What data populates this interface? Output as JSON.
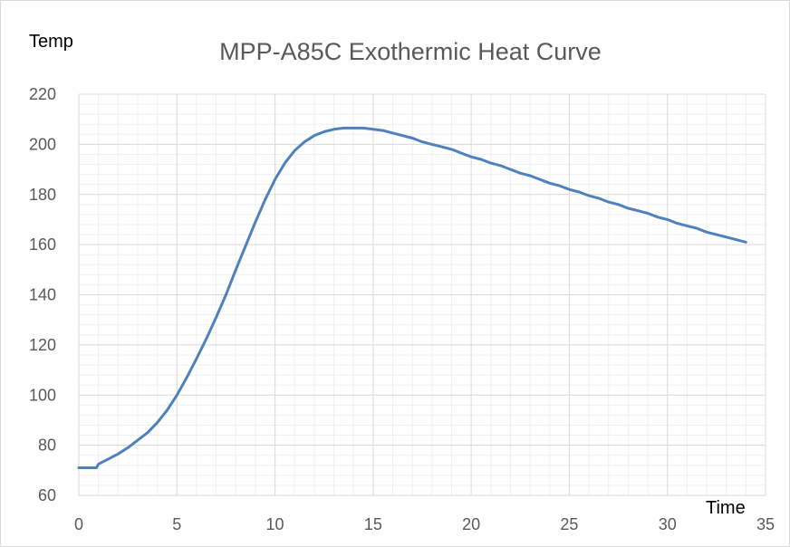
{
  "chart_data": {
    "type": "line",
    "title": "MPP-A85C Exothermic Heat Curve",
    "xlabel": "Time",
    "ylabel": "Temp",
    "xlim": [
      0,
      35
    ],
    "ylim": [
      60,
      220
    ],
    "x_ticks": [
      0,
      5,
      10,
      15,
      20,
      25,
      30,
      35
    ],
    "y_ticks": [
      60,
      80,
      100,
      120,
      140,
      160,
      180,
      200,
      220
    ],
    "x_minor_step": 1,
    "y_minor_step": 4,
    "grid": true,
    "legend": "none",
    "series_color": "#4f81bd",
    "series": [
      {
        "x": [
          0,
          0.5,
          0.9,
          1,
          1.5,
          2,
          2.5,
          3,
          3.5,
          4,
          4.5,
          5,
          5.5,
          6,
          6.5,
          7,
          7.5,
          8,
          8.5,
          9,
          9.5,
          10,
          10.5,
          11,
          11.5,
          12,
          12.5,
          13,
          13.5,
          14,
          14.5,
          15,
          15.5,
          16,
          16.5,
          17,
          17.5,
          18,
          18.5,
          19,
          19.5,
          20,
          20.5,
          21,
          21.5,
          22,
          22.5,
          23,
          23.5,
          24,
          24.5,
          25,
          25.5,
          26,
          26.5,
          27,
          27.5,
          28,
          28.5,
          29,
          29.5,
          30,
          30.5,
          31,
          31.5,
          32,
          32.5,
          33,
          33.5,
          34
        ],
        "values": [
          71,
          71,
          71,
          72.5,
          74.5,
          76.5,
          79,
          82,
          85,
          89,
          94,
          100,
          107,
          114.5,
          122.5,
          131,
          140,
          150,
          159.5,
          169,
          178,
          186,
          192.5,
          197.5,
          201,
          203.5,
          205,
          206,
          206.5,
          206.5,
          206.5,
          206,
          205.5,
          204.5,
          203.5,
          202.5,
          201,
          200,
          199,
          198,
          196.5,
          195,
          194,
          192.5,
          191.5,
          190,
          188.5,
          187.5,
          186,
          184.5,
          183.5,
          182,
          181,
          179.5,
          178.5,
          177,
          176,
          174.5,
          173.5,
          172.5,
          171,
          170,
          168.5,
          167.5,
          166.5,
          165,
          164,
          163,
          162,
          161
        ]
      }
    ]
  }
}
